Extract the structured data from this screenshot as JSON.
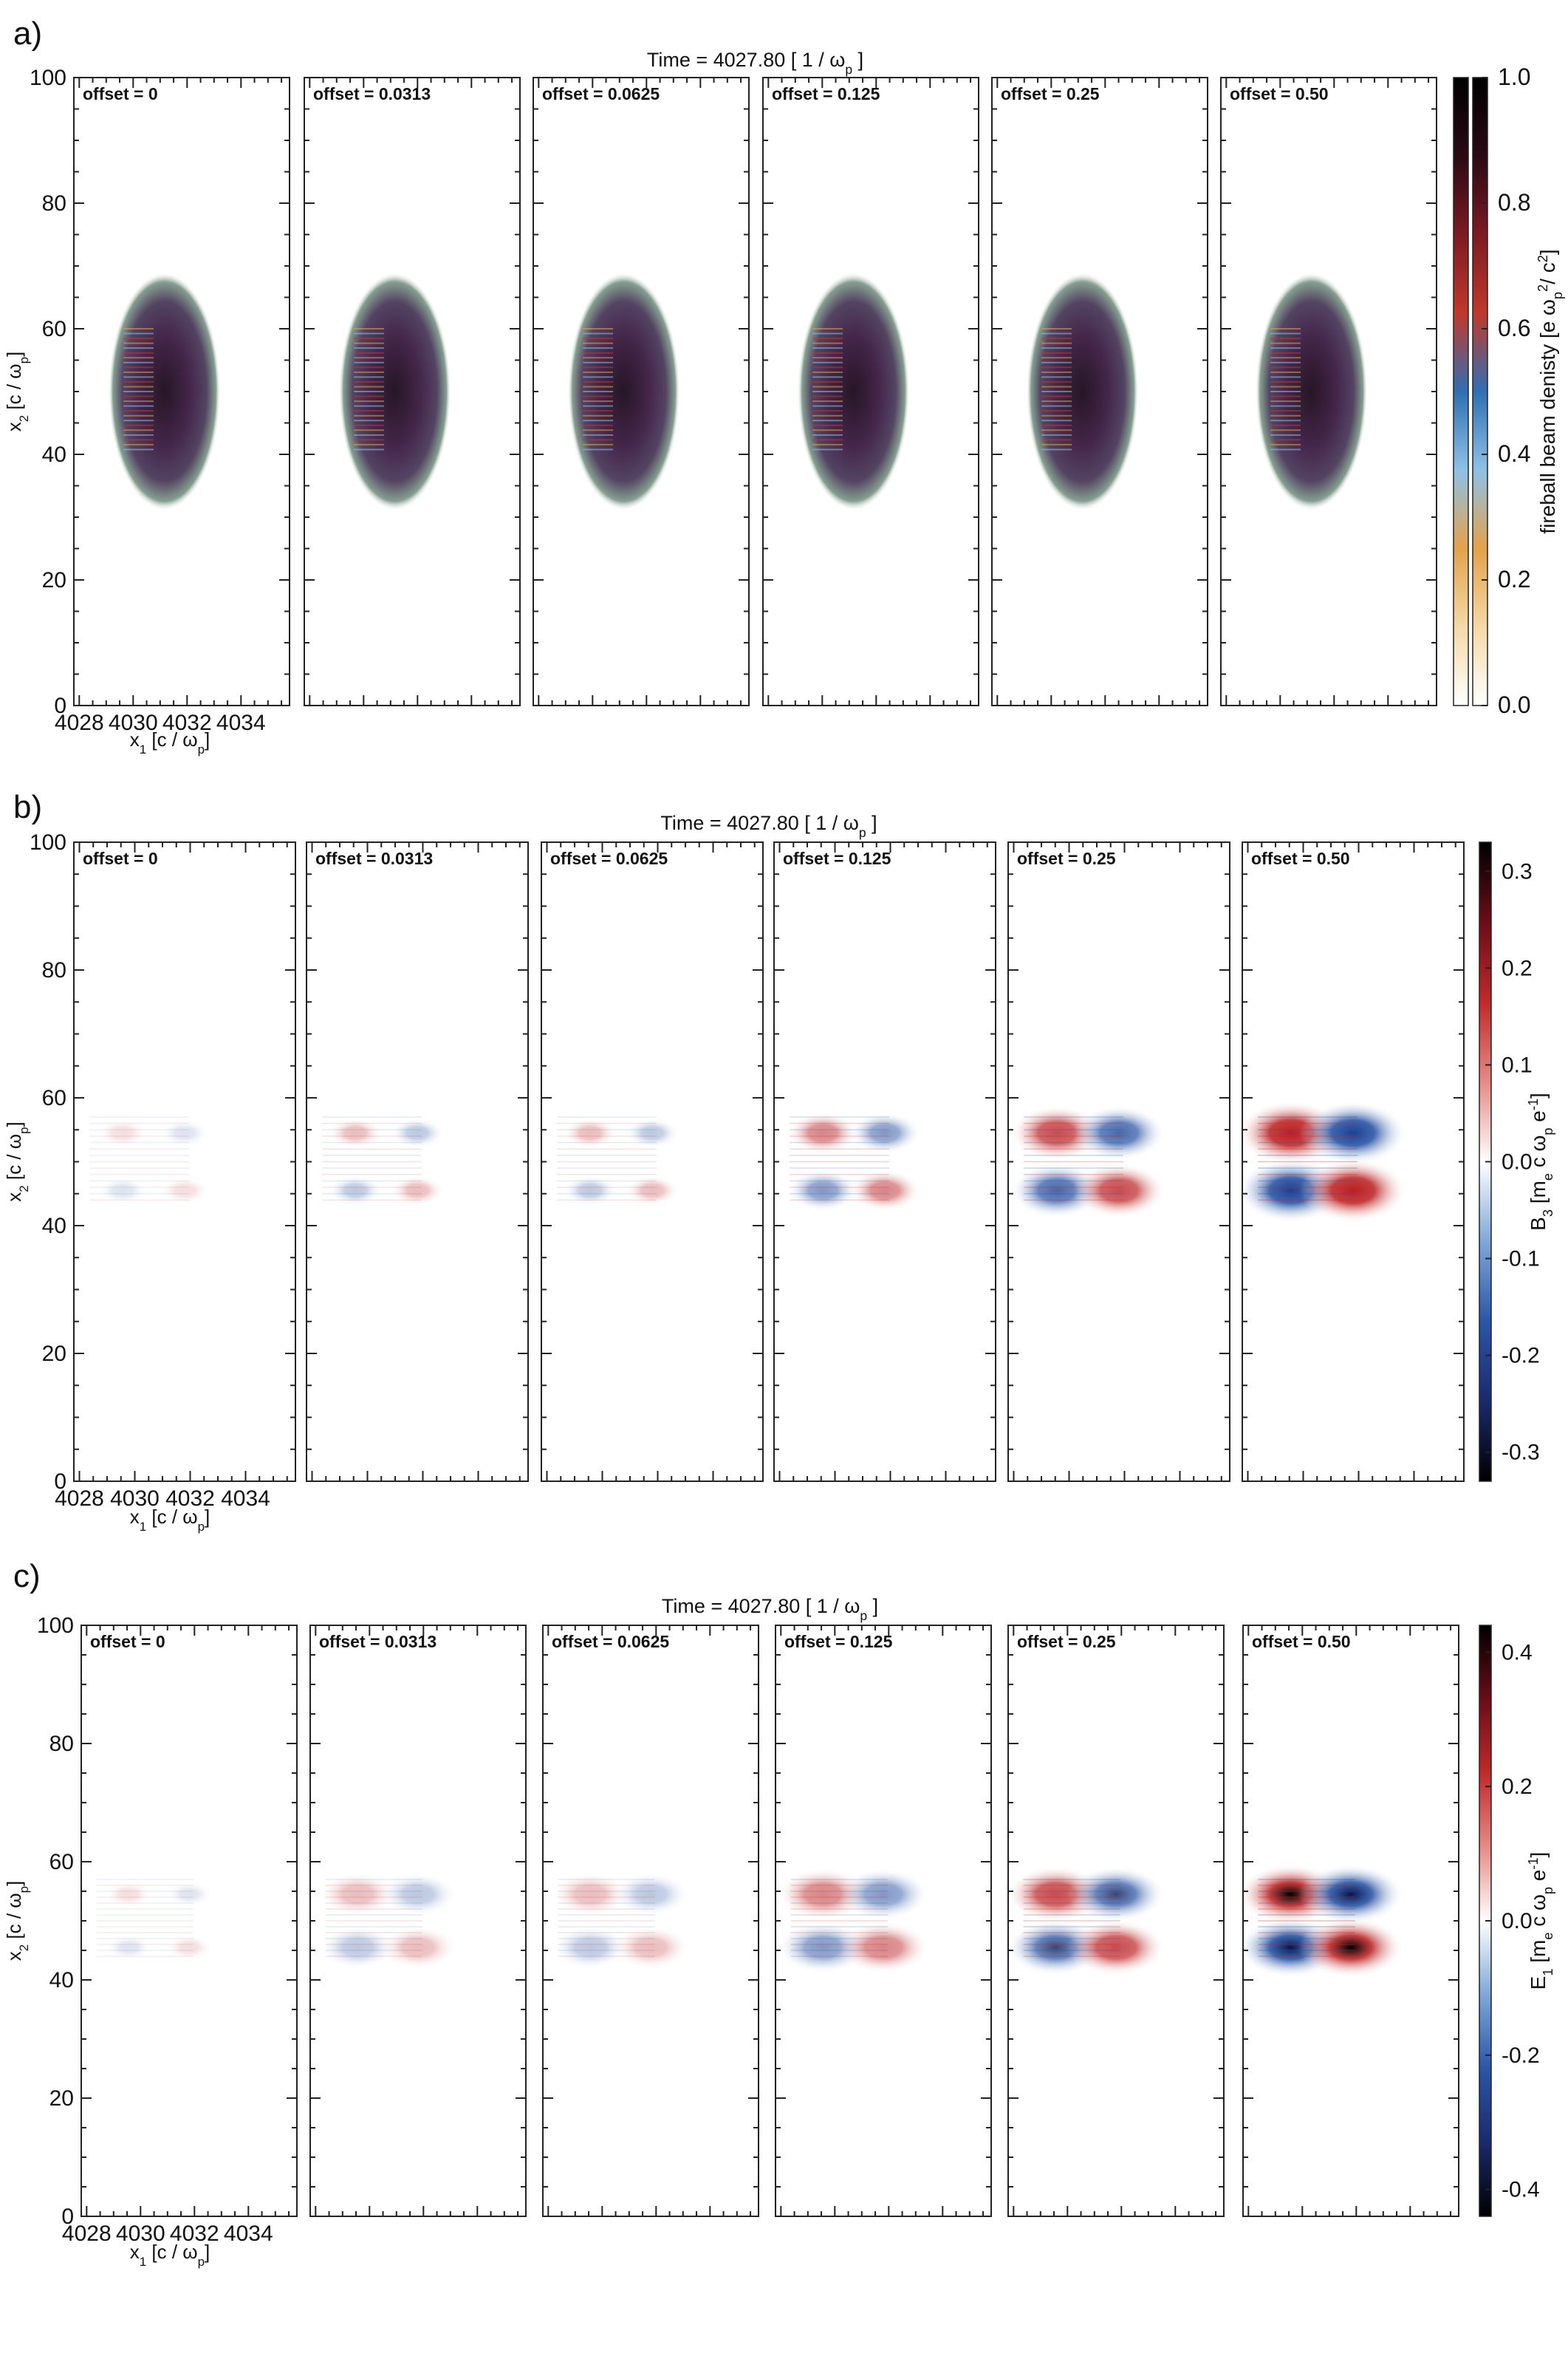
{
  "chart_data": [
    {
      "type": "heatmap",
      "panel_label": "a)",
      "title": "Time =  4027.80 [ 1 /  ω",
      "title_sub": "p",
      "title_end": " ]",
      "xlabel": "x",
      "xlabel_sub": "1",
      "xlabel_rest": " [c / ω",
      "xlabel_sub2": "p",
      "xlabel_end": "]",
      "ylabel": "x",
      "ylabel_sub": "2",
      "ylabel_rest": " [c / ω",
      "ylabel_sub2": "p",
      "ylabel_end": "]",
      "x_ticks": [
        "4028",
        "4030",
        "4032",
        "4034"
      ],
      "y_ticks": [
        "0",
        "20",
        "40",
        "60",
        "80",
        "100"
      ],
      "ylim": [
        0,
        100
      ],
      "xlim": [
        4027.8,
        4035.8
      ],
      "offsets": [
        "offset = 0",
        "offset = 0.0313",
        "offset = 0.0625",
        "offset = 0.125",
        "offset = 0.25",
        "offset = 0.50"
      ],
      "colorbar_label": "fireball beam denisty  [e ω",
      "colorbar_label_sub": "p",
      "colorbar_label_sup": "2",
      "colorbar_label_end": "/ c",
      "colorbar_label_sup2": "2",
      "colorbar_label_close": "]",
      "colorbar_ticks": [
        "0.0",
        "0.2",
        "0.4",
        "0.6",
        "0.8",
        "1.0"
      ],
      "colorbar_range": [
        0,
        1
      ],
      "colormap": [
        "#ffffff",
        "#f5d9a6",
        "#e3a24a",
        "#8ec1e6",
        "#2f6fb3",
        "#c0392b",
        "#7d1a22",
        "#2a0a14",
        "#000000"
      ]
    },
    {
      "type": "heatmap",
      "panel_label": "b)",
      "title": "Time =  4027.80 [ 1 /  ω",
      "title_sub": "p",
      "title_end": " ]",
      "xlabel": "x",
      "xlabel_sub": "1",
      "xlabel_rest": " [c / ω",
      "xlabel_sub2": "p",
      "xlabel_end": "]",
      "ylabel": "x",
      "ylabel_sub": "2",
      "ylabel_rest": " [c / ω",
      "ylabel_sub2": "p",
      "ylabel_end": "]",
      "x_ticks": [
        "4028",
        "4030",
        "4032",
        "4034"
      ],
      "y_ticks": [
        "0",
        "20",
        "40",
        "60",
        "80",
        "100"
      ],
      "ylim": [
        0,
        100
      ],
      "xlim": [
        4027.8,
        4035.8
      ],
      "offsets": [
        "offset = 0",
        "offset = 0.0313",
        "offset = 0.0625",
        "offset = 0.125",
        "offset = 0.25",
        "offset = 0.50"
      ],
      "colorbar_label": "B",
      "colorbar_label_sub": "3",
      "colorbar_label_rest": " [m",
      "colorbar_label_sub2": "e",
      "colorbar_label_mid": " c ω",
      "colorbar_label_sub3": "p",
      "colorbar_label_end": " e",
      "colorbar_label_sup": "-1",
      "colorbar_label_close": "]",
      "colorbar_ticks": [
        "-0.3",
        "-0.2",
        "-0.1",
        "0.0",
        "0.1",
        "0.2",
        "0.3"
      ],
      "colorbar_range": [
        -0.33,
        0.33
      ],
      "colormap": [
        "#000000",
        "#1a2a6c",
        "#2b56a6",
        "#7fa7d8",
        "#ffffff",
        "#e58b86",
        "#c02a2a",
        "#6a0d18",
        "#000000"
      ]
    },
    {
      "type": "heatmap",
      "panel_label": "c)",
      "title": "Time =  4027.80 [ 1 /  ω",
      "title_sub": "p",
      "title_end": " ]",
      "xlabel": "x",
      "xlabel_sub": "1",
      "xlabel_rest": " [c / ω",
      "xlabel_sub2": "p",
      "xlabel_end": "]",
      "ylabel": "x",
      "ylabel_sub": "2",
      "ylabel_rest": " [c / ω",
      "ylabel_sub2": "p",
      "ylabel_end": "]",
      "x_ticks": [
        "4028",
        "4030",
        "4032",
        "4034"
      ],
      "y_ticks": [
        "0",
        "20",
        "40",
        "60",
        "80",
        "100"
      ],
      "ylim": [
        0,
        100
      ],
      "xlim": [
        4027.8,
        4035.8
      ],
      "offsets": [
        "offset = 0",
        "offset = 0.0313",
        "offset = 0.0625",
        "offset = 0.125",
        "offset = 0.25",
        "offset = 0.50"
      ],
      "colorbar_label": "E",
      "colorbar_label_sub": "1",
      "colorbar_label_rest": " [m",
      "colorbar_label_sub2": "e",
      "colorbar_label_mid": " c ω",
      "colorbar_label_sub3": "p",
      "colorbar_label_end": " e",
      "colorbar_label_sup": "-1",
      "colorbar_label_close": "]",
      "colorbar_ticks": [
        "-0.4",
        "-0.2",
        "0.0",
        "0.2",
        "0.4"
      ],
      "colorbar_range": [
        -0.44,
        0.44
      ],
      "colormap": [
        "#000000",
        "#1a2a6c",
        "#2b56a6",
        "#7fa7d8",
        "#ffffff",
        "#e58b86",
        "#c02a2a",
        "#6a0d18",
        "#000000"
      ]
    }
  ]
}
